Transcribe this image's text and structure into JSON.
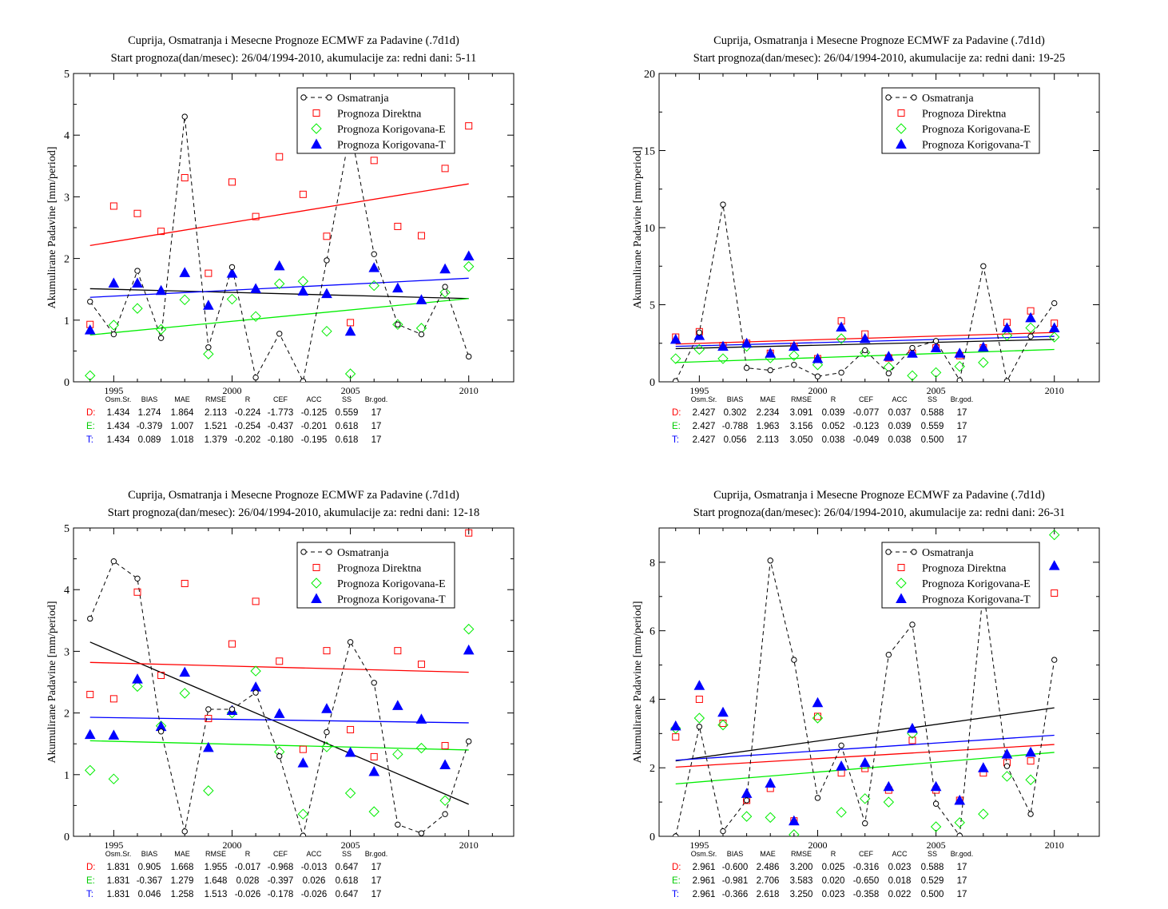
{
  "chart_data": [
    {
      "type": "line",
      "title": "Cuprija, Osmatranja i Mesecne Prognoze ECMWF za Padavine (.7d1d)",
      "subtitle": "Start prognoza(dan/mesec): 26/04/1994-2010, akumulacije za: redni dani: 5-11",
      "ylabel": "Akumulirane Padavine [mm/period]",
      "xlabel": "",
      "xlim": [
        1993.3,
        2011.9
      ],
      "ylim": [
        0,
        5
      ],
      "xticks": [
        1995,
        2000,
        2005,
        2010
      ],
      "yticks": [
        0,
        1,
        2,
        3,
        4,
        5
      ],
      "x": [
        1994,
        1995,
        1996,
        1997,
        1998,
        1999,
        2000,
        2001,
        2002,
        2003,
        2004,
        2005,
        2006,
        2007,
        2008,
        2009,
        2010
      ],
      "series": [
        {
          "name": "Osmatranja",
          "color": "#000000",
          "values": [
            1.3,
            0.77,
            1.8,
            0.71,
            4.3,
            0.56,
            1.86,
            0.07,
            0.78,
            0.01,
            1.97,
            4.1,
            2.07,
            0.93,
            0.77,
            1.54,
            0.41
          ]
        },
        {
          "name": "Prognoza Direktna",
          "color": "#ff0000",
          "values": [
            0.93,
            2.85,
            2.73,
            2.44,
            3.31,
            1.76,
            3.24,
            2.68,
            3.65,
            3.04,
            2.36,
            0.96,
            3.59,
            2.52,
            2.37,
            3.46,
            4.15
          ]
        },
        {
          "name": "Prognoza Korigovana-E",
          "color": "#00ee00",
          "values": [
            0.1,
            0.92,
            1.19,
            0.85,
            1.33,
            0.45,
            1.34,
            1.06,
            1.59,
            1.63,
            0.82,
            0.13,
            1.56,
            0.93,
            0.87,
            1.45,
            1.87
          ]
        },
        {
          "name": "Prognoza Korigovana-T",
          "color": "#0000ff",
          "values": [
            0.84,
            1.6,
            1.6,
            1.48,
            1.77,
            1.24,
            1.76,
            1.51,
            1.88,
            1.47,
            1.43,
            0.82,
            1.85,
            1.52,
            1.33,
            1.83,
            2.04
          ]
        }
      ],
      "trends": [
        {
          "color": "#000000",
          "start": 1.51,
          "end": 1.35
        },
        {
          "color": "#ff0000",
          "start": 2.21,
          "end": 3.21
        },
        {
          "color": "#00ee00",
          "start": 0.76,
          "end": 1.35
        },
        {
          "color": "#0000ff",
          "start": 1.37,
          "end": 1.68
        }
      ],
      "stats_header": [
        "Osm.Sr.",
        "BIAS",
        "MAE",
        "RMSE",
        "R",
        "CEF",
        "ACC",
        "SS",
        "Br.god."
      ],
      "stats_rows": [
        {
          "label": "D:",
          "color": "#ff0000",
          "values": [
            "1.434",
            "1.274",
            "1.864",
            "2.113",
            "-0.224",
            "-1.773",
            "-0.125",
            "0.559",
            "17"
          ]
        },
        {
          "label": "E:",
          "color": "#00cc00",
          "values": [
            "1.434",
            "-0.379",
            "1.007",
            "1.521",
            "-0.254",
            "-0.437",
            "-0.201",
            "0.618",
            "17"
          ]
        },
        {
          "label": "T:",
          "color": "#0000ff",
          "values": [
            "1.434",
            "0.089",
            "1.018",
            "1.379",
            "-0.202",
            "-0.180",
            "-0.195",
            "0.618",
            "17"
          ]
        }
      ]
    },
    {
      "type": "line",
      "title": "Cuprija, Osmatranja i Mesecne Prognoze ECMWF za Padavine (.7d1d)",
      "subtitle": "Start prognoza(dan/mesec): 26/04/1994-2010, akumulacije za: redni dani: 19-25",
      "ylabel": "Akumulirane Padavine [mm/period]",
      "xlabel": "",
      "xlim": [
        1993.3,
        2011.9
      ],
      "ylim": [
        0,
        20
      ],
      "xticks": [
        1995,
        2000,
        2005,
        2010
      ],
      "yticks": [
        0,
        5,
        10,
        15,
        20
      ],
      "x": [
        1994,
        1995,
        1996,
        1997,
        1998,
        1999,
        2000,
        2001,
        2002,
        2003,
        2004,
        2005,
        2006,
        2007,
        2008,
        2009,
        2010
      ],
      "series": [
        {
          "name": "Osmatranja",
          "color": "#000000",
          "values": [
            0.05,
            3.2,
            11.5,
            0.9,
            0.75,
            1.1,
            0.35,
            0.6,
            2.05,
            0.55,
            2.2,
            2.65,
            0.1,
            7.5,
            0.05,
            2.95,
            5.1
          ]
        },
        {
          "name": "Prognoza Direktna",
          "color": "#ff0000",
          "values": [
            2.9,
            3.25,
            2.35,
            2.5,
            1.85,
            2.3,
            1.5,
            3.95,
            3.1,
            1.55,
            1.85,
            2.2,
            1.7,
            2.2,
            3.85,
            4.6,
            3.8
          ]
        },
        {
          "name": "Prognoza Korigovana-E",
          "color": "#00ee00",
          "values": [
            1.5,
            2.1,
            1.5,
            2.3,
            1.55,
            1.7,
            1.1,
            2.8,
            1.9,
            0.95,
            0.4,
            0.6,
            1.0,
            1.25,
            3.0,
            3.5,
            2.9
          ]
        },
        {
          "name": "Prognoza Korigovana-T",
          "color": "#0000ff",
          "values": [
            2.75,
            3.0,
            2.3,
            2.5,
            1.85,
            2.3,
            1.5,
            3.55,
            2.8,
            1.65,
            1.85,
            2.2,
            1.85,
            2.25,
            3.5,
            4.15,
            3.5
          ]
        }
      ],
      "trends": [
        {
          "color": "#000000",
          "start": 2.15,
          "end": 2.75
        },
        {
          "color": "#ff0000",
          "start": 2.45,
          "end": 3.2
        },
        {
          "color": "#00ee00",
          "start": 1.25,
          "end": 2.1
        },
        {
          "color": "#0000ff",
          "start": 2.3,
          "end": 2.95
        }
      ],
      "stats_header": [
        "Osm.Sr.",
        "BIAS",
        "MAE",
        "RMSE",
        "R",
        "CEF",
        "ACC",
        "SS",
        "Br.god."
      ],
      "stats_rows": [
        {
          "label": "D:",
          "color": "#ff0000",
          "values": [
            "2.427",
            "0.302",
            "2.234",
            "3.091",
            "0.039",
            "-0.077",
            "0.037",
            "0.588",
            "17"
          ]
        },
        {
          "label": "E:",
          "color": "#00cc00",
          "values": [
            "2.427",
            "-0.788",
            "1.963",
            "3.156",
            "0.052",
            "-0.123",
            "0.039",
            "0.559",
            "17"
          ]
        },
        {
          "label": "T:",
          "color": "#0000ff",
          "values": [
            "2.427",
            "0.056",
            "2.113",
            "3.050",
            "0.038",
            "-0.049",
            "0.038",
            "0.500",
            "17"
          ]
        }
      ]
    },
    {
      "type": "line",
      "title": "Cuprija, Osmatranja i Mesecne Prognoze ECMWF za Padavine (.7d1d)",
      "subtitle": "Start prognoza(dan/mesec): 26/04/1994-2010, akumulacije za: redni dani: 12-18",
      "ylabel": "Akumulirane Padavine [mm/period]",
      "xlabel": "",
      "xlim": [
        1993.3,
        2011.9
      ],
      "ylim": [
        0,
        5
      ],
      "xticks": [
        1995,
        2000,
        2005,
        2010
      ],
      "yticks": [
        0,
        1,
        2,
        3,
        4,
        5
      ],
      "x": [
        1994,
        1995,
        1996,
        1997,
        1998,
        1999,
        2000,
        2001,
        2002,
        2003,
        2004,
        2005,
        2006,
        2007,
        2008,
        2009,
        2010
      ],
      "series": [
        {
          "name": "Osmatranja",
          "color": "#000000",
          "values": [
            3.53,
            4.46,
            4.18,
            1.7,
            0.08,
            2.06,
            2.06,
            2.33,
            1.3,
            0.01,
            1.69,
            3.15,
            2.49,
            0.19,
            0.05,
            0.36,
            1.54
          ]
        },
        {
          "name": "Prognoza Direktna",
          "color": "#ff0000",
          "values": [
            2.3,
            2.23,
            3.96,
            2.61,
            4.1,
            1.91,
            3.12,
            3.81,
            2.84,
            1.41,
            3.01,
            1.73,
            1.29,
            3.01,
            2.79,
            1.47,
            4.92
          ]
        },
        {
          "name": "Prognoza Korigovana-E",
          "color": "#00ee00",
          "values": [
            1.07,
            0.93,
            2.43,
            1.79,
            2.32,
            0.74,
            2.0,
            2.68,
            1.37,
            0.36,
            1.45,
            0.7,
            0.4,
            1.33,
            1.43,
            0.58,
            3.36
          ]
        },
        {
          "name": "Prognoza Korigovana-T",
          "color": "#0000ff",
          "values": [
            1.65,
            1.64,
            2.55,
            1.78,
            2.66,
            1.44,
            2.04,
            2.42,
            1.99,
            1.19,
            2.07,
            1.36,
            1.05,
            2.12,
            1.9,
            1.16,
            3.02
          ]
        }
      ],
      "trends": [
        {
          "color": "#000000",
          "start": 3.15,
          "end": 0.52
        },
        {
          "color": "#ff0000",
          "start": 2.82,
          "end": 2.66
        },
        {
          "color": "#00ee00",
          "start": 1.55,
          "end": 1.4
        },
        {
          "color": "#0000ff",
          "start": 1.93,
          "end": 1.84
        }
      ],
      "stats_header": [
        "Osm.Sr.",
        "BIAS",
        "MAE",
        "RMSE",
        "R",
        "CEF",
        "ACC",
        "SS",
        "Br.god."
      ],
      "stats_rows": [
        {
          "label": "D:",
          "color": "#ff0000",
          "values": [
            "1.831",
            "0.905",
            "1.668",
            "1.955",
            "-0.017",
            "-0.968",
            "-0.013",
            "0.647",
            "17"
          ]
        },
        {
          "label": "E:",
          "color": "#00cc00",
          "values": [
            "1.831",
            "-0.367",
            "1.279",
            "1.648",
            "0.028",
            "-0.397",
            "0.026",
            "0.618",
            "17"
          ]
        },
        {
          "label": "T:",
          "color": "#0000ff",
          "values": [
            "1.831",
            "0.046",
            "1.258",
            "1.513",
            "-0.026",
            "-0.178",
            "-0.026",
            "0.647",
            "17"
          ]
        }
      ]
    },
    {
      "type": "line",
      "title": "Cuprija, Osmatranja i Mesecne Prognoze ECMWF za Padavine (.7d1d)",
      "subtitle": "Start prognoza(dan/mesec): 26/04/1994-2010, akumulacije za: redni dani: 26-31",
      "ylabel": "Akumulirane Padavine [mm/period]",
      "xlabel": "",
      "xlim": [
        1993.3,
        2011.9
      ],
      "ylim": [
        0,
        9
      ],
      "xticks": [
        1995,
        2000,
        2005,
        2010
      ],
      "yticks": [
        0,
        2,
        4,
        6,
        8
      ],
      "x": [
        1994,
        1995,
        1996,
        1997,
        1998,
        1999,
        2000,
        2001,
        2002,
        2003,
        2004,
        2005,
        2006,
        2007,
        2008,
        2009,
        2010
      ],
      "series": [
        {
          "name": "Osmatranja",
          "color": "#000000",
          "values": [
            0.0,
            3.2,
            0.15,
            1.05,
            8.05,
            5.15,
            1.12,
            2.65,
            0.38,
            5.3,
            6.18,
            0.95,
            0.02,
            7.2,
            2.05,
            0.65,
            5.15
          ]
        },
        {
          "name": "Prognoza Direktna",
          "color": "#ff0000",
          "values": [
            2.9,
            4.0,
            3.3,
            1.05,
            1.4,
            0.45,
            3.5,
            1.85,
            1.98,
            1.35,
            2.8,
            1.35,
            1.05,
            1.85,
            2.15,
            2.2,
            7.1
          ]
        },
        {
          "name": "Prognoza Korigovana-E",
          "color": "#00ee00",
          "values": [
            3.15,
            3.45,
            3.25,
            0.58,
            0.55,
            0.05,
            3.45,
            0.7,
            1.1,
            1.0,
            3.0,
            0.28,
            0.4,
            0.65,
            1.75,
            1.65,
            8.8
          ]
        },
        {
          "name": "Prognoza Korigovana-T",
          "color": "#0000ff",
          "values": [
            3.22,
            4.4,
            3.62,
            1.25,
            1.55,
            0.45,
            3.9,
            2.05,
            2.15,
            1.45,
            3.15,
            1.45,
            1.05,
            2.0,
            2.4,
            2.45,
            7.9
          ]
        }
      ],
      "trends": [
        {
          "color": "#000000",
          "start": 2.2,
          "end": 3.75
        },
        {
          "color": "#ff0000",
          "start": 2.02,
          "end": 2.68
        },
        {
          "color": "#00ee00",
          "start": 1.53,
          "end": 2.45
        },
        {
          "color": "#0000ff",
          "start": 2.22,
          "end": 2.95
        }
      ],
      "stats_header": [
        "Osm.Sr.",
        "BIAS",
        "MAE",
        "RMSE",
        "R",
        "CEF",
        "ACC",
        "SS",
        "Br.god."
      ],
      "stats_rows": [
        {
          "label": "D:",
          "color": "#ff0000",
          "values": [
            "2.961",
            "-0.600",
            "2.486",
            "3.200",
            "0.025",
            "-0.316",
            "0.023",
            "0.588",
            "17"
          ]
        },
        {
          "label": "E:",
          "color": "#00cc00",
          "values": [
            "2.961",
            "-0.981",
            "2.706",
            "3.583",
            "0.020",
            "-0.650",
            "0.018",
            "0.529",
            "17"
          ]
        },
        {
          "label": "T:",
          "color": "#0000ff",
          "values": [
            "2.961",
            "-0.366",
            "2.618",
            "3.250",
            "0.023",
            "-0.358",
            "0.022",
            "0.500",
            "17"
          ]
        }
      ]
    }
  ]
}
